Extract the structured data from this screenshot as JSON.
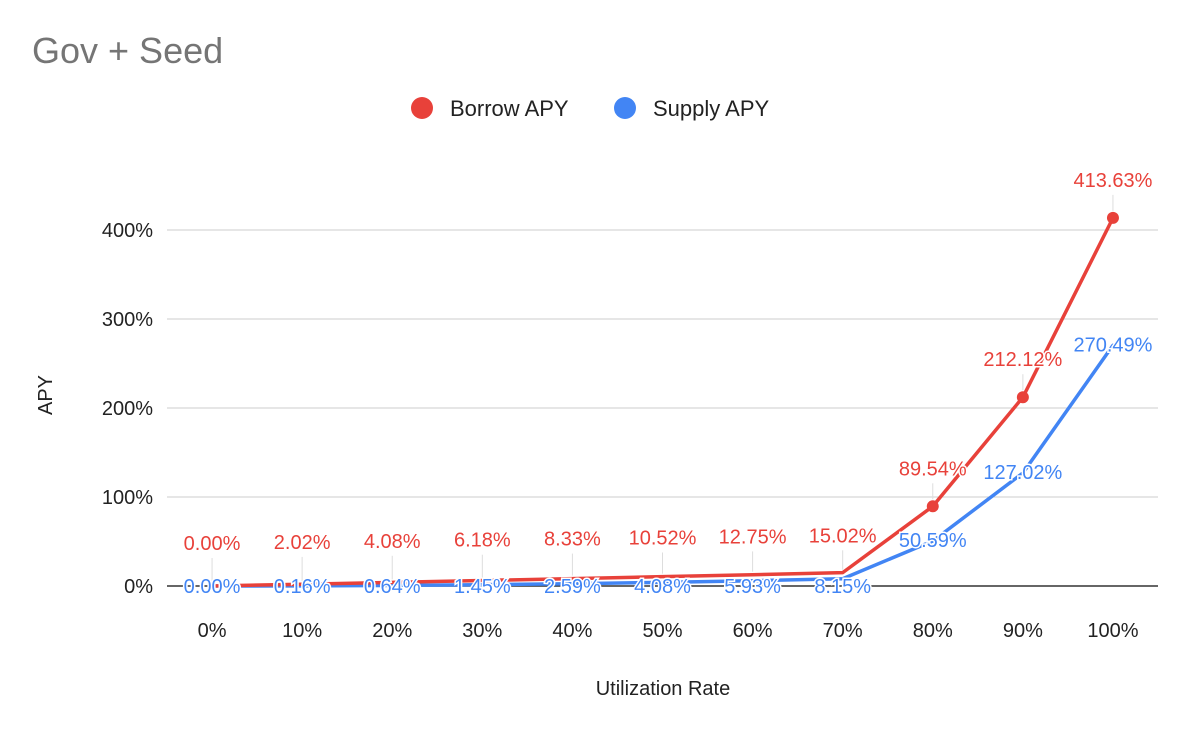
{
  "chart_data": {
    "type": "line",
    "title": "Gov + Seed",
    "xlabel": "Utilization Rate",
    "ylabel": "APY",
    "categories": [
      "0%",
      "10%",
      "20%",
      "30%",
      "40%",
      "50%",
      "60%",
      "70%",
      "80%",
      "90%",
      "100%"
    ],
    "ylim": [
      0,
      400
    ],
    "yticks": [
      0,
      100,
      200,
      300,
      400
    ],
    "ytick_labels": [
      "0%",
      "100%",
      "200%",
      "300%",
      "400%"
    ],
    "grid": true,
    "legend_position": "top",
    "series": [
      {
        "name": "Borrow APY",
        "color": "#e8413a",
        "values": [
          0.0,
          2.02,
          4.08,
          6.18,
          8.33,
          10.52,
          12.75,
          15.02,
          89.54,
          212.12,
          413.63
        ],
        "labels": [
          "0.00%",
          "2.02%",
          "4.08%",
          "6.18%",
          "8.33%",
          "10.52%",
          "12.75%",
          "15.02%",
          "89.54%",
          "212.12%",
          "413.63%"
        ]
      },
      {
        "name": "Supply APY",
        "color": "#4285f4",
        "values": [
          0.0,
          0.16,
          0.64,
          1.45,
          2.59,
          4.08,
          5.93,
          8.15,
          50.59,
          127.02,
          270.49
        ],
        "labels": [
          "0.00%",
          "0.16%",
          "0.64%",
          "1.45%",
          "2.59%",
          "4.08%",
          "5.93%",
          "8.15%",
          "50.59%",
          "127.02%",
          "270.49%"
        ]
      }
    ]
  }
}
